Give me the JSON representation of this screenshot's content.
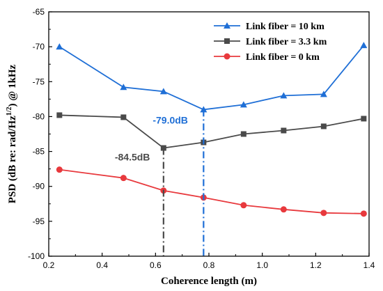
{
  "chart_data": {
    "type": "line",
    "xlabel": "Coherence length (m)",
    "ylabel_main": "PSD (dB re: rad/Hz",
    "ylabel_sup": "1/2",
    "ylabel_tail": ")  @ 1kHz",
    "xlim": [
      0.2,
      1.4
    ],
    "ylim": [
      -100,
      -65
    ],
    "xticks": [
      "0.2",
      "0.4",
      "0.6",
      "0.8",
      "1.0",
      "1.2",
      "1.4"
    ],
    "yticks": [
      "-65",
      "-70",
      "-75",
      "-80",
      "-85",
      "-90",
      "-95",
      "-100"
    ],
    "legend_position": "top-right",
    "series": [
      {
        "name": "Link fiber = 10 km",
        "color": "#1f6fd6",
        "marker": "triangle",
        "x": [
          0.24,
          0.48,
          0.63,
          0.78,
          0.93,
          1.08,
          1.23,
          1.38
        ],
        "y": [
          -70.0,
          -75.8,
          -76.4,
          -79.0,
          -78.3,
          -77.0,
          -76.8,
          -69.8
        ]
      },
      {
        "name": "Link fiber = 3.3 km",
        "color": "#4a4a4a",
        "marker": "square",
        "x": [
          0.24,
          0.48,
          0.63,
          0.78,
          0.93,
          1.08,
          1.23,
          1.38
        ],
        "y": [
          -79.8,
          -80.1,
          -84.5,
          -83.7,
          -82.5,
          -82.0,
          -81.4,
          -80.3
        ]
      },
      {
        "name": "Link fiber = 0 km",
        "color": "#e8393d",
        "marker": "circle",
        "x": [
          0.24,
          0.48,
          0.63,
          0.78,
          0.93,
          1.08,
          1.23,
          1.38
        ],
        "y": [
          -87.6,
          -88.8,
          -90.6,
          -91.6,
          -92.7,
          -93.3,
          -93.8,
          -93.9
        ]
      }
    ],
    "annotations": [
      {
        "text": "-79.0dB",
        "x": 0.78,
        "y": -79.0,
        "color": "#1f6fd6"
      },
      {
        "text": "-84.5dB",
        "x": 0.63,
        "y": -84.5,
        "color": "#4a4a4a"
      }
    ]
  }
}
